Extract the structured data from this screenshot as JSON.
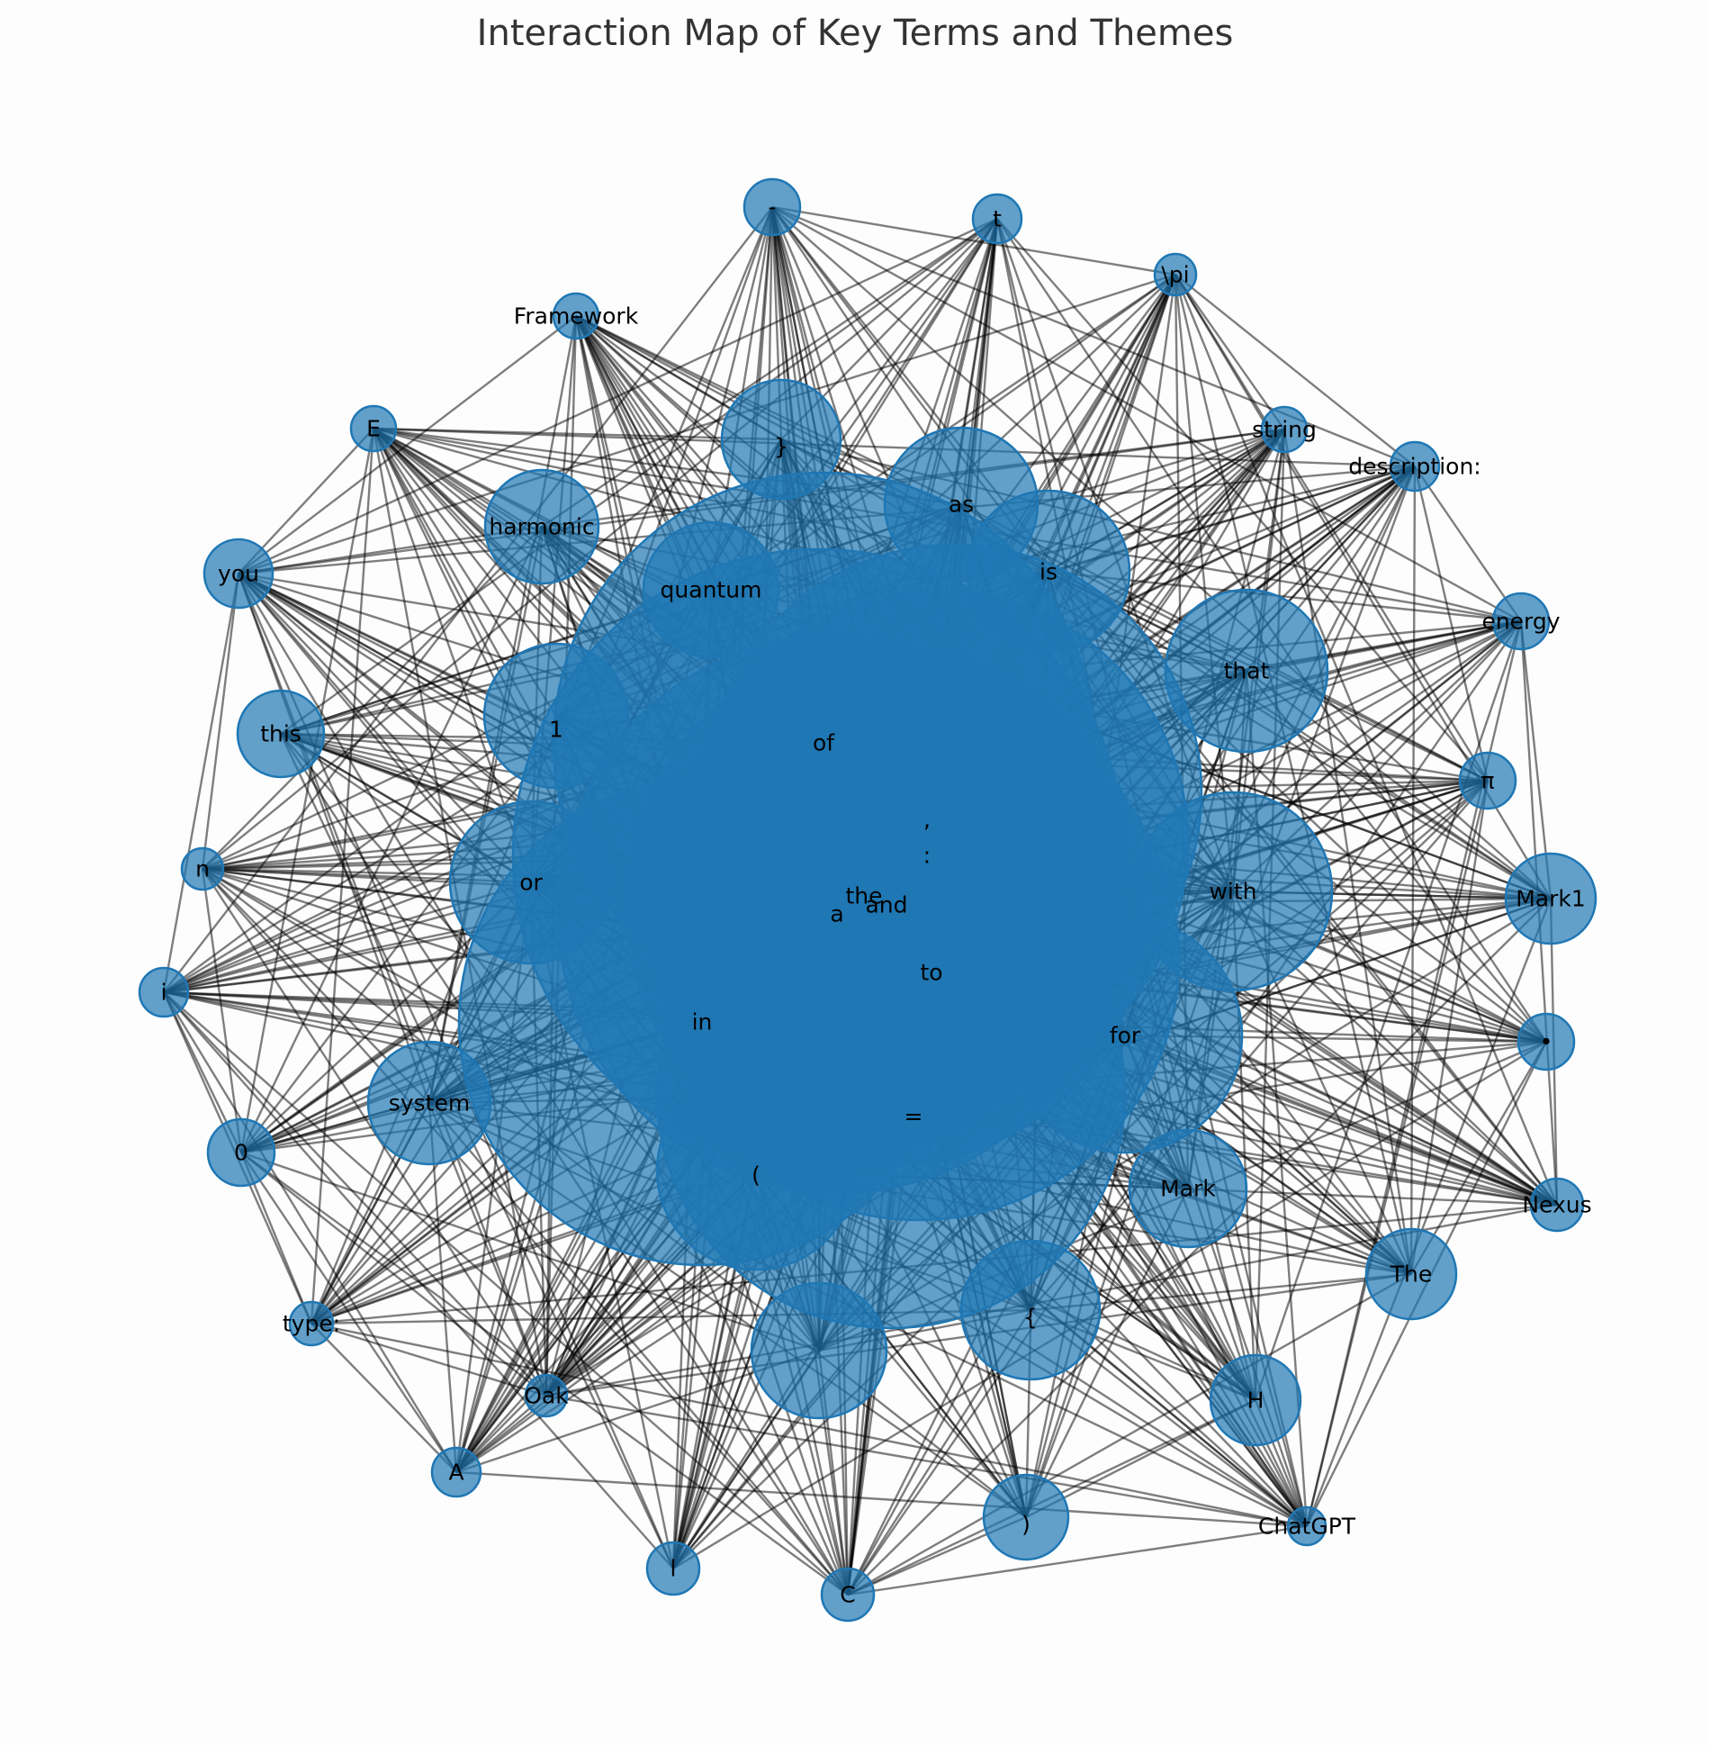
{
  "title": "Interaction Map of Key Terms and Themes",
  "colors": {
    "node": "#1f77b4",
    "edge": "#000000",
    "label": "#000000",
    "title": "#333333"
  },
  "nodes": [
    {
      "id": "the",
      "label": "the"
    },
    {
      "id": "of",
      "label": "of"
    },
    {
      "id": "a",
      "label": "a"
    },
    {
      "id": "and",
      "label": "and"
    },
    {
      "id": "to",
      "label": "to"
    },
    {
      "id": "comma",
      "label": ","
    },
    {
      "id": "colon",
      "label": ":"
    },
    {
      "id": "in",
      "label": "in"
    },
    {
      "id": "equals",
      "label": "="
    },
    {
      "id": "for",
      "label": "for"
    },
    {
      "id": "lparen",
      "label": "("
    },
    {
      "id": "with",
      "label": "with"
    },
    {
      "id": "or",
      "label": "or"
    },
    {
      "id": "quantum",
      "label": "quantum"
    },
    {
      "id": "is",
      "label": "is"
    },
    {
      "id": "as",
      "label": "as"
    },
    {
      "id": "that",
      "label": "that"
    },
    {
      "id": "one",
      "label": "1"
    },
    {
      "id": "rbrace",
      "label": "}"
    },
    {
      "id": "harmonic",
      "label": "harmonic"
    },
    {
      "id": "system",
      "label": "system"
    },
    {
      "id": "lbrace",
      "label": "{"
    },
    {
      "id": "mark",
      "label": "Mark"
    },
    {
      "id": "blank",
      "label": ""
    },
    {
      "id": "this",
      "label": "this"
    },
    {
      "id": "you",
      "label": "you"
    },
    {
      "id": "rparen",
      "label": ")"
    },
    {
      "id": "h",
      "label": "H"
    },
    {
      "id": "the_cap",
      "label": "The"
    },
    {
      "id": "mark1",
      "label": "Mark1"
    },
    {
      "id": "zero",
      "label": "0"
    },
    {
      "id": "dash",
      "label": "-"
    },
    {
      "id": "energy",
      "label": "energy"
    },
    {
      "id": "pi_sym",
      "label": "π"
    },
    {
      "id": "e",
      "label": "E"
    },
    {
      "id": "i",
      "label": "i"
    },
    {
      "id": "n",
      "label": "n"
    },
    {
      "id": "t",
      "label": "t"
    },
    {
      "id": "bullet",
      "label": "•"
    },
    {
      "id": "nexus",
      "label": "Nexus"
    },
    {
      "id": "string",
      "label": "string"
    },
    {
      "id": "description",
      "label": "description:"
    },
    {
      "id": "framework",
      "label": "Framework"
    },
    {
      "id": "type",
      "label": "type:"
    },
    {
      "id": "oak",
      "label": "Oak"
    },
    {
      "id": "a_cap",
      "label": "A"
    },
    {
      "id": "l",
      "label": "l"
    },
    {
      "id": "c",
      "label": "C"
    },
    {
      "id": "pi_tex",
      "label": "\\pi"
    },
    {
      "id": "chatgpt",
      "label": "ChatGPT"
    }
  ]
}
